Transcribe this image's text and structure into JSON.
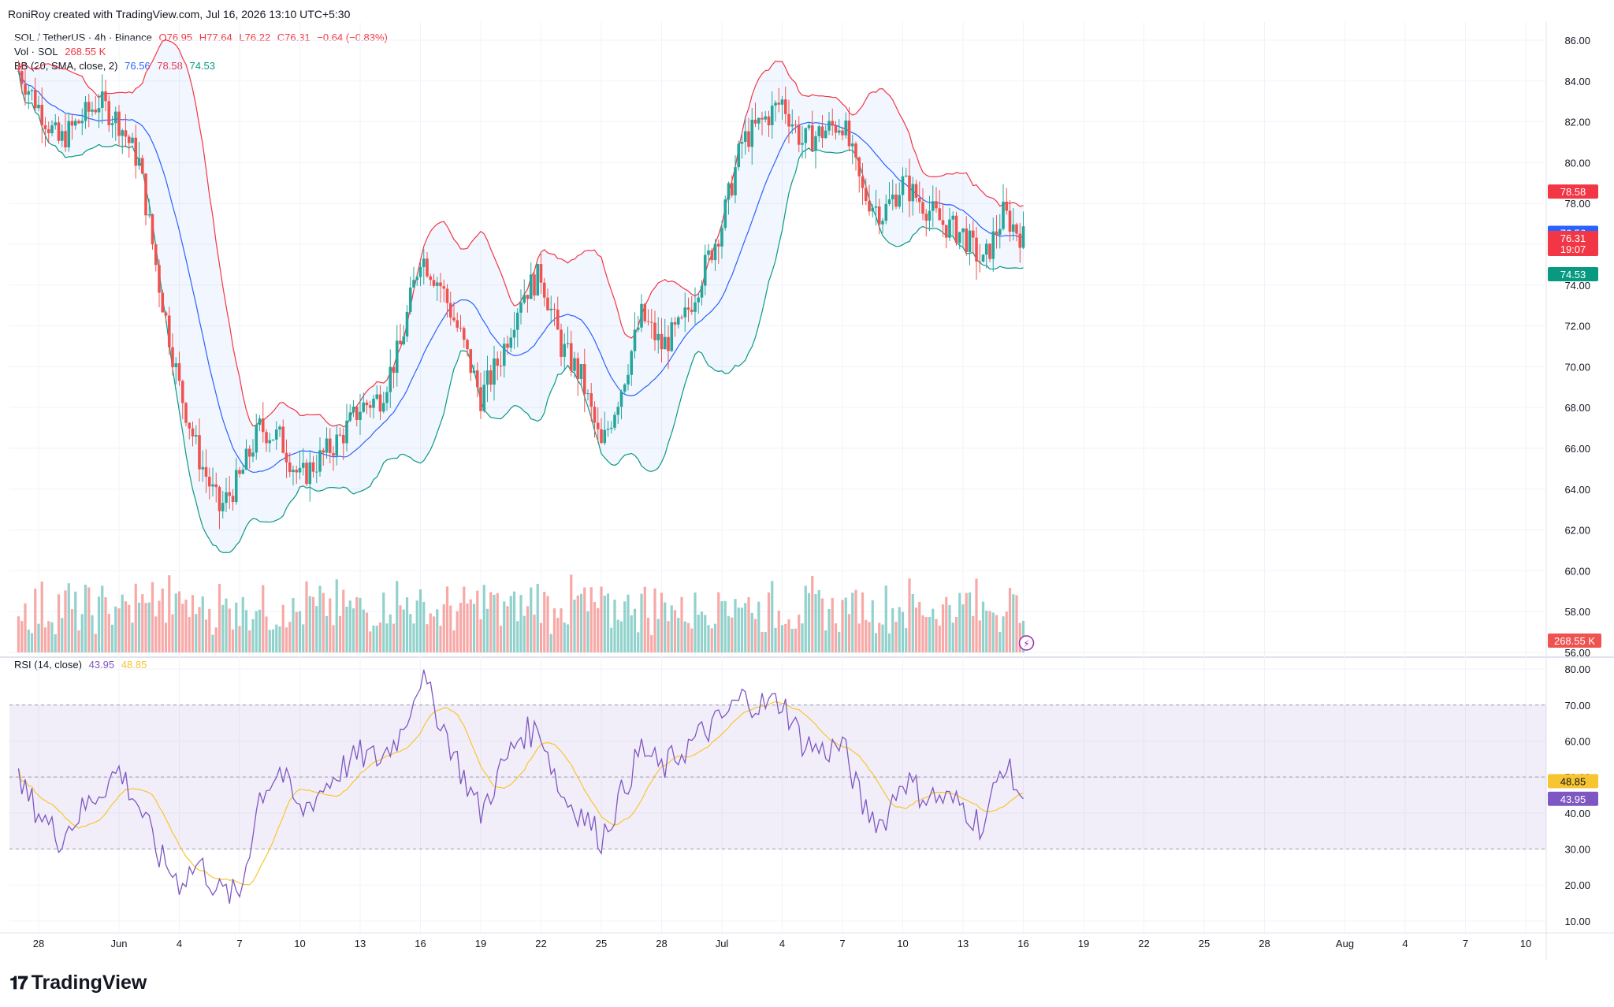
{
  "credit": "RoniRoy created with TradingView.com, Jul 16, 2026 13:10 UTC+5:30",
  "footer_logo": "TradingView",
  "legend": {
    "symbol": "SOL / TetherUS · 4h · Binance",
    "o": "O76.95",
    "h": "H77.64",
    "l": "L76.22",
    "c": "C76.31",
    "change": "−0.64 (−0.83%)",
    "vol_label": "Vol · SOL",
    "vol_value": "268.55 K",
    "bb_label": "BB (20, SMA, close, 2)",
    "bb_mid": "76.56",
    "bb_up": "78.58",
    "bb_low": "74.53",
    "rsi_label": "RSI (14, close)",
    "rsi_value": "43.95",
    "rsi_ma": "48.85"
  },
  "colors": {
    "up": "#26a69a",
    "down": "#ef5350",
    "bb_upper": "#f23645",
    "bb_basis": "#2962ff",
    "bb_lower": "#089981",
    "rsi": "#7e57c2",
    "rsi_ma": "#f7c531",
    "grid": "#f0f3fa"
  },
  "chart_data": [
    {
      "type": "candlestick",
      "title": "SOL / TetherUS · 4h · Binance",
      "ylim": [
        56,
        86.5
      ],
      "y_ticks": [
        56,
        58,
        60,
        62,
        64,
        66,
        68,
        70,
        72,
        74,
        76,
        78,
        80,
        82,
        84,
        86
      ],
      "x_tick_labels": [
        "28",
        "Jun",
        "4",
        "7",
        "10",
        "13",
        "16",
        "19",
        "22",
        "25",
        "28",
        "Jul",
        "4",
        "7",
        "10",
        "13",
        "16",
        "19",
        "22",
        "25",
        "28",
        "Aug",
        "4",
        "7",
        "10"
      ],
      "x_range_days": [
        "May 27",
        "Aug 11"
      ],
      "price_path_daily": [
        {
          "day": "May 27",
          "close": 84.5
        },
        {
          "day": "May 29",
          "close": 81.0
        },
        {
          "day": "May 31",
          "close": 83.0
        },
        {
          "day": "Jun 1",
          "close": 82.0
        },
        {
          "day": "Jun 2",
          "close": 80.0
        },
        {
          "day": "Jun 3",
          "close": 74.0
        },
        {
          "day": "Jun 4",
          "close": 69.0
        },
        {
          "day": "Jun 5",
          "close": 65.5
        },
        {
          "day": "Jun 6",
          "close": 63.0
        },
        {
          "day": "Jun 7",
          "close": 64.5
        },
        {
          "day": "Jun 8",
          "close": 67.0
        },
        {
          "day": "Jun 9",
          "close": 66.5
        },
        {
          "day": "Jun 10",
          "close": 64.5
        },
        {
          "day": "Jun 11",
          "close": 65.5
        },
        {
          "day": "Jun 12",
          "close": 66.5
        },
        {
          "day": "Jun 13",
          "close": 68.0
        },
        {
          "day": "Jun 14",
          "close": 68.5
        },
        {
          "day": "Jun 15",
          "close": 71.0
        },
        {
          "day": "Jun 16",
          "close": 75.5
        },
        {
          "day": "Jun 17",
          "close": 74.0
        },
        {
          "day": "Jun 18",
          "close": 71.5
        },
        {
          "day": "Jun 19",
          "close": 68.5
        },
        {
          "day": "Jun 20",
          "close": 70.5
        },
        {
          "day": "Jun 21",
          "close": 73.5
        },
        {
          "day": "Jun 22",
          "close": 74.5
        },
        {
          "day": "Jun 23",
          "close": 71.0
        },
        {
          "day": "Jun 24",
          "close": 69.5
        },
        {
          "day": "Jun 25",
          "close": 66.0
        },
        {
          "day": "Jun 26",
          "close": 69.0
        },
        {
          "day": "Jun 27",
          "close": 72.5
        },
        {
          "day": "Jun 28",
          "close": 71.0
        },
        {
          "day": "Jun 29",
          "close": 72.0
        },
        {
          "day": "Jun 30",
          "close": 74.5
        },
        {
          "day": "Jul 1",
          "close": 77.0
        },
        {
          "day": "Jul 2",
          "close": 81.0
        },
        {
          "day": "Jul 3",
          "close": 82.0
        },
        {
          "day": "Jul 4",
          "close": 83.0
        },
        {
          "day": "Jul 5",
          "close": 81.0
        },
        {
          "day": "Jul 6",
          "close": 81.5
        },
        {
          "day": "Jul 7",
          "close": 82.0
        },
        {
          "day": "Jul 8",
          "close": 78.5
        },
        {
          "day": "Jul 9",
          "close": 77.5
        },
        {
          "day": "Jul 10",
          "close": 79.0
        },
        {
          "day": "Jul 11",
          "close": 78.0
        },
        {
          "day": "Jul 12",
          "close": 77.0
        },
        {
          "day": "Jul 13",
          "close": 76.5
        },
        {
          "day": "Jul 14",
          "close": 75.0
        },
        {
          "day": "Jul 15",
          "close": 77.5
        },
        {
          "day": "Jul 16",
          "close": 76.31
        }
      ],
      "price_labels": [
        {
          "value": 78.58,
          "text": "78.58",
          "color": "#f23645"
        },
        {
          "value": 76.56,
          "text": "76.56",
          "color": "#2962ff"
        },
        {
          "value": 76.31,
          "text": "76.31",
          "sub": "19:07",
          "color": "#f23645"
        },
        {
          "value": 74.53,
          "text": "74.53",
          "color": "#089981"
        }
      ],
      "volume_last": {
        "text": "268.55 K",
        "color": "#ef5350"
      }
    },
    {
      "type": "line",
      "title": "RSI (14, close)",
      "ylim": [
        8,
        82
      ],
      "y_ticks": [
        10,
        20,
        30,
        40,
        50,
        60,
        70,
        80
      ],
      "band": [
        30,
        70
      ],
      "midline": 50,
      "rsi_path_daily": [
        {
          "day": "May 27",
          "value": 48
        },
        {
          "day": "May 29",
          "value": 33
        },
        {
          "day": "May 31",
          "value": 46
        },
        {
          "day": "Jun 1",
          "value": 52
        },
        {
          "day": "Jun 2",
          "value": 42
        },
        {
          "day": "Jun 3",
          "value": 28
        },
        {
          "day": "Jun 4",
          "value": 21
        },
        {
          "day": "Jun 5",
          "value": 26
        },
        {
          "day": "Jun 6",
          "value": 18
        },
        {
          "day": "Jun 7",
          "value": 17
        },
        {
          "day": "Jun 8",
          "value": 45
        },
        {
          "day": "Jun 9",
          "value": 52
        },
        {
          "day": "Jun 10",
          "value": 40
        },
        {
          "day": "Jun 11",
          "value": 46
        },
        {
          "day": "Jun 12",
          "value": 52
        },
        {
          "day": "Jun 13",
          "value": 56
        },
        {
          "day": "Jun 14",
          "value": 55
        },
        {
          "day": "Jun 15",
          "value": 62
        },
        {
          "day": "Jun 16",
          "value": 78
        },
        {
          "day": "Jun 17",
          "value": 66
        },
        {
          "day": "Jun 18",
          "value": 52
        },
        {
          "day": "Jun 19",
          "value": 40
        },
        {
          "day": "Jun 20",
          "value": 52
        },
        {
          "day": "Jun 21",
          "value": 62
        },
        {
          "day": "Jun 22",
          "value": 63
        },
        {
          "day": "Jun 23",
          "value": 45
        },
        {
          "day": "Jun 24",
          "value": 40
        },
        {
          "day": "Jun 25",
          "value": 33
        },
        {
          "day": "Jun 26",
          "value": 45
        },
        {
          "day": "Jun 27",
          "value": 58
        },
        {
          "day": "Jun 28",
          "value": 52
        },
        {
          "day": "Jun 29",
          "value": 57
        },
        {
          "day": "Jun 30",
          "value": 62
        },
        {
          "day": "Jul 1",
          "value": 66
        },
        {
          "day": "Jul 2",
          "value": 72
        },
        {
          "day": "Jul 3",
          "value": 70
        },
        {
          "day": "Jul 4",
          "value": 71
        },
        {
          "day": "Jul 5",
          "value": 60
        },
        {
          "day": "Jul 6",
          "value": 57
        },
        {
          "day": "Jul 7",
          "value": 59
        },
        {
          "day": "Jul 8",
          "value": 42
        },
        {
          "day": "Jul 9",
          "value": 37
        },
        {
          "day": "Jul 10",
          "value": 50
        },
        {
          "day": "Jul 11",
          "value": 45
        },
        {
          "day": "Jul 12",
          "value": 44
        },
        {
          "day": "Jul 13",
          "value": 42
        },
        {
          "day": "Jul 14",
          "value": 36
        },
        {
          "day": "Jul 15",
          "value": 54
        },
        {
          "day": "Jul 16",
          "value": 43.95
        }
      ],
      "price_labels": [
        {
          "value": 48.85,
          "text": "48.85",
          "color": "#f7c531"
        },
        {
          "value": 43.95,
          "text": "43.95",
          "color": "#7e57c2"
        }
      ]
    }
  ]
}
